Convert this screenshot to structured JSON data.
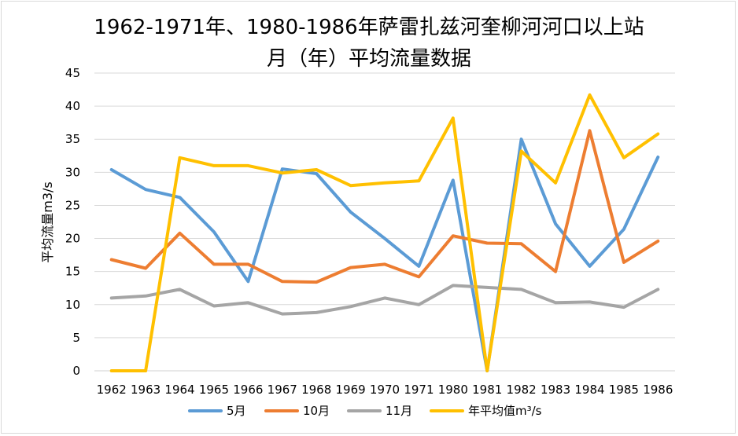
{
  "chart_data": {
    "type": "line",
    "title_line1": "1962-1971年、1980-1986年萨雷扎兹河奎柳河河口以上站",
    "title_line2": "月（年）平均流量数据",
    "xlabel": "",
    "ylabel": "平均流量m3/s",
    "ylim": [
      0,
      45
    ],
    "ytick_step": 5,
    "grid": true,
    "legend_position": "bottom",
    "categories": [
      "1962",
      "1963",
      "1964",
      "1965",
      "1966",
      "1967",
      "1968",
      "1969",
      "1970",
      "1971",
      "1980",
      "1981",
      "1982",
      "1983",
      "1984",
      "1985",
      "1986"
    ],
    "series": [
      {
        "name": "5月",
        "color": "#5b9bd5",
        "values": [
          30.4,
          27.4,
          26.2,
          21.0,
          13.5,
          30.5,
          29.8,
          24.0,
          20.0,
          15.8,
          28.8,
          0.0,
          35.0,
          22.2,
          15.8,
          21.4,
          32.3
        ]
      },
      {
        "name": "10月",
        "color": "#ed7d31",
        "values": [
          16.8,
          15.5,
          20.8,
          16.1,
          16.1,
          13.5,
          13.4,
          15.6,
          16.1,
          14.2,
          20.4,
          19.3,
          19.2,
          15.0,
          36.3,
          16.4,
          19.6
        ]
      },
      {
        "name": "11月",
        "color": "#a5a5a5",
        "values": [
          11.0,
          11.3,
          12.3,
          9.8,
          10.3,
          8.6,
          8.8,
          9.7,
          11.0,
          10.0,
          12.9,
          12.6,
          12.3,
          10.3,
          10.4,
          9.6,
          12.3
        ]
      },
      {
        "name": "年平均值m³/s",
        "color": "#ffc000",
        "values": [
          0.0,
          0.0,
          32.2,
          31.0,
          31.0,
          29.9,
          30.4,
          28.0,
          28.4,
          28.7,
          38.2,
          0.0,
          33.2,
          28.4,
          41.7,
          32.2,
          35.8
        ]
      }
    ]
  }
}
